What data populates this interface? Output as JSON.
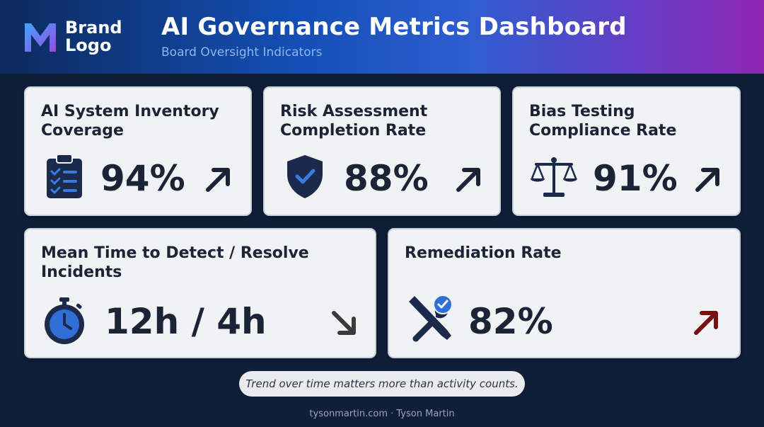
{
  "header": {
    "logo_line1": "Brand",
    "logo_line2": "Logo",
    "title": "AI Governance Metrics Dashboard",
    "subtitle": "Board Oversight Indicators"
  },
  "metrics": [
    {
      "title_line1": "AI System Inventory",
      "title_line2": "Coverage",
      "value": "94%",
      "icon": "clipboard-checklist-icon",
      "trend": "up"
    },
    {
      "title_line1": "Risk Assessment",
      "title_line2": "Completion Rate",
      "value": "88%",
      "icon": "shield-check-icon",
      "trend": "up"
    },
    {
      "title_line1": "Bias Testing",
      "title_line2": "Compliance Rate",
      "value": "91%",
      "icon": "balance-scale-icon",
      "trend": "up"
    },
    {
      "title_line1": "Mean Time to Detect / Resolve",
      "title_line2": "Incidents",
      "value": "12h / 4h",
      "icon": "stopwatch-icon",
      "trend": "down"
    },
    {
      "title_line1": "Remediation Rate",
      "title_line2": "",
      "value": "82%",
      "icon": "wrench-screwdriver-icon",
      "trend": "up"
    }
  ],
  "colors": {
    "icon_navy": "#1b2a4a",
    "accent_blue": "#2f6fd6",
    "trend_dark": "#1b2436",
    "trend_down": "#3b3b3b",
    "trend_red": "#7a1010"
  },
  "footnote": "Trend over time matters more than activity counts.",
  "credit": "tysonmartin.com · Tyson Martin"
}
